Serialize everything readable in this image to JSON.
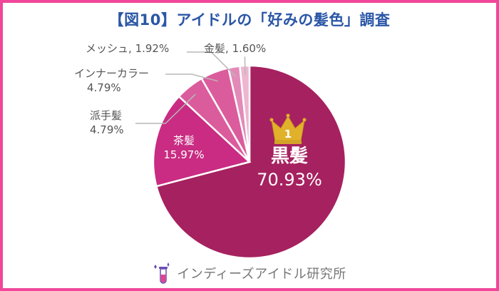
{
  "title": "【図10】アイドルの「好みの髪色」調査",
  "footer": {
    "brand": "インディーズアイドル研究所",
    "icon": "test-tube-sparkle-icon"
  },
  "colors": {
    "frame": "#f0479a",
    "title": "#2a56a6",
    "crown": "#e1b12c",
    "slices": [
      "#a6215f",
      "#c92c82",
      "#db5c9c",
      "#e38bb8",
      "#eeb6d0"
    ]
  },
  "chart_data": {
    "type": "pie",
    "title": "【図10】アイドルの「好みの髪色」調査",
    "rank_badge": "1",
    "slices": [
      {
        "label": "黒髪",
        "value": 70.93,
        "value_text": "70.93%"
      },
      {
        "label": "茶髪",
        "value": 15.97,
        "value_text": "15.97%"
      },
      {
        "label": "派手髪",
        "value": 4.79,
        "value_text": "4.79%"
      },
      {
        "label": "インナーカラー",
        "value": 4.79,
        "value_text": "4.79%"
      },
      {
        "label": "メッシュ",
        "value": 1.92,
        "value_text": "1.92%"
      },
      {
        "label": "金髪",
        "value": 1.6,
        "value_text": "1.60%"
      }
    ]
  }
}
